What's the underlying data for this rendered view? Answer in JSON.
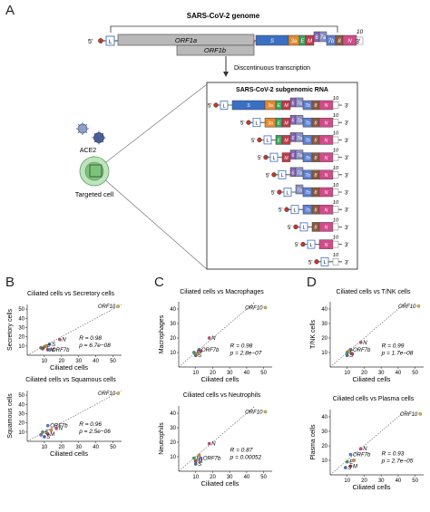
{
  "panels": {
    "A": "A",
    "B": "B",
    "C": "C",
    "D": "D"
  },
  "genome": {
    "title": "SARS-CoV-2 genome",
    "five_prime": "5'",
    "three_prime": "3'",
    "leader": "L",
    "orf1a": "ORF1a",
    "orf1b": "ORF1b",
    "genes": [
      "S",
      "3a",
      "E",
      "M",
      "6",
      "7a",
      "7b",
      "8",
      "N",
      "10"
    ],
    "transcription_label": "Discontinuous transcription"
  },
  "subgenomic": {
    "title": "SARS-CoV-2 subgenomic RNA",
    "ten": "10",
    "rows": [
      [
        "S",
        "3a",
        "E",
        "M",
        "6",
        "7a",
        "7b",
        "8",
        "N"
      ],
      [
        "3a",
        "E",
        "M",
        "6",
        "7a",
        "7b",
        "8",
        "N"
      ],
      [
        "E",
        "M",
        "6",
        "7a",
        "7b",
        "8",
        "N"
      ],
      [
        "M",
        "6",
        "7a",
        "7b",
        "8",
        "N"
      ],
      [
        "6",
        "7a",
        "7b",
        "8",
        "N"
      ],
      [
        "7a",
        "7b",
        "8",
        "N"
      ],
      [
        "7b",
        "8",
        "N"
      ],
      [
        "8",
        "N"
      ],
      [
        "N"
      ],
      []
    ]
  },
  "cell": {
    "ace2": "ACE2",
    "targeted": "Targeted cell"
  },
  "colors": {
    "leader": "#ffffff",
    "orf": "#b9b9b9",
    "S": "#3a6fc4",
    "3a": "#e08a2c",
    "E": "#3aa35a",
    "M": "#c23a4a",
    "6": "#8a63b5",
    "7a": "#8a8fc8",
    "7b": "#5d7fcf",
    "8": "#8b5a3c",
    "N": "#d24b8a",
    "10": "#9aa0a6",
    "diag": "#555555",
    "axis": "#333333",
    "cap": "#c0392b",
    "virus": "#7a8fb3",
    "cellfill": "#7ac47a"
  },
  "chart_data": [
    {
      "type": "scatter",
      "title": "Ciliated cells vs Secretory cells",
      "xlabel": "Ciliated cells",
      "ylabel": "Secretory cells",
      "xlim": [
        0,
        55
      ],
      "ylim": [
        0,
        55
      ],
      "xticks": [
        10,
        20,
        30,
        40,
        50
      ],
      "yticks": [
        10,
        20,
        30,
        40,
        50
      ],
      "r_text": "R = 0.98",
      "p_text": "p = 6.7e−08",
      "points": [
        {
          "label": "ORF10",
          "x": 53,
          "y": 53,
          "color": "#e0b04a"
        },
        {
          "label": "N",
          "x": 19,
          "y": 17,
          "color": "#d24b8a"
        },
        {
          "label": "S",
          "x": 13,
          "y": 12,
          "color": "#3a6fc4"
        },
        {
          "label": "E",
          "x": 10,
          "y": 9,
          "color": "#3aa35a"
        },
        {
          "label": "M",
          "x": 12,
          "y": 6,
          "color": "#c23a4a"
        },
        {
          "label": "ORF7b",
          "x": 13,
          "y": 6,
          "color": "#5d7fcf"
        },
        {
          "label": "",
          "x": 8,
          "y": 8,
          "color": "#8a63b5"
        },
        {
          "label": "",
          "x": 11,
          "y": 10,
          "color": "#e08a2c"
        },
        {
          "label": "",
          "x": 9,
          "y": 7,
          "color": "#8b5a3c"
        }
      ],
      "labels_shown": [
        "ORF10",
        "N",
        "S",
        "E",
        "M",
        "ORF7b"
      ]
    },
    {
      "type": "scatter",
      "title": "Ciliated cells vs Squamous cells",
      "xlabel": "Ciliated cells",
      "ylabel": "Squamous cells",
      "xlim": [
        0,
        55
      ],
      "ylim": [
        0,
        55
      ],
      "xticks": [
        10,
        20,
        30,
        40,
        50
      ],
      "yticks": [
        10,
        20,
        30,
        40,
        50
      ],
      "r_text": "R = 0.96",
      "p_text": "p = 2.5e−06",
      "points": [
        {
          "label": "ORF10",
          "x": 53,
          "y": 52,
          "color": "#e0b04a"
        },
        {
          "label": "N",
          "x": 17,
          "y": 14,
          "color": "#d24b8a"
        },
        {
          "label": "ORF7b",
          "x": 12,
          "y": 17,
          "color": "#5d7fcf"
        },
        {
          "label": "E",
          "x": 9,
          "y": 10,
          "color": "#3aa35a"
        },
        {
          "label": "M",
          "x": 12,
          "y": 8,
          "color": "#c23a4a"
        },
        {
          "label": "S",
          "x": 10,
          "y": 5,
          "color": "#3a6fc4"
        },
        {
          "label": "",
          "x": 14,
          "y": 12,
          "color": "#e08a2c"
        },
        {
          "label": "",
          "x": 8,
          "y": 7,
          "color": "#8a63b5"
        }
      ]
    },
    {
      "type": "scatter",
      "title": "Ciliated cells vs Macrophages",
      "xlabel": "Ciliated cells",
      "ylabel": "Macrophages",
      "xlim": [
        0,
        55
      ],
      "ylim": [
        0,
        45
      ],
      "xticks": [
        10,
        20,
        30,
        40,
        50
      ],
      "yticks": [
        10,
        20,
        30,
        40
      ],
      "r_text": "R = 0.98",
      "p_text": "p = 2.8e−07",
      "points": [
        {
          "label": "ORF10",
          "x": 51,
          "y": 41,
          "color": "#e0b04a"
        },
        {
          "label": "N",
          "x": 18,
          "y": 20,
          "color": "#d24b8a"
        },
        {
          "label": "ORF7b",
          "x": 12,
          "y": 12,
          "color": "#5d7fcf"
        },
        {
          "label": "S",
          "x": 10,
          "y": 8,
          "color": "#3a6fc4"
        },
        {
          "label": "E",
          "x": 9,
          "y": 10,
          "color": "#3aa35a"
        },
        {
          "label": "",
          "x": 13,
          "y": 11,
          "color": "#c23a4a"
        },
        {
          "label": "",
          "x": 11,
          "y": 9,
          "color": "#e08a2c"
        }
      ]
    },
    {
      "type": "scatter",
      "title": "Ciliated cells vs Neutrophils",
      "xlabel": "Ciliated cells",
      "ylabel": "Neutrophils",
      "xlim": [
        0,
        55
      ],
      "ylim": [
        0,
        45
      ],
      "xticks": [
        10,
        20,
        30,
        40,
        50
      ],
      "yticks": [
        10,
        20,
        30,
        40
      ],
      "r_text": "R = 0.87",
      "p_text": "p = 0.00052",
      "points": [
        {
          "label": "ORF10",
          "x": 51,
          "y": 41,
          "color": "#e0b04a"
        },
        {
          "label": "N",
          "x": 18,
          "y": 19,
          "color": "#d24b8a"
        },
        {
          "label": "ORF7b",
          "x": 13,
          "y": 9,
          "color": "#5d7fcf"
        },
        {
          "label": "E",
          "x": 9,
          "y": 9,
          "color": "#3aa35a"
        },
        {
          "label": "M",
          "x": 10,
          "y": 7,
          "color": "#c23a4a"
        },
        {
          "label": "S",
          "x": 10,
          "y": 5,
          "color": "#3a6fc4"
        },
        {
          "label": "",
          "x": 12,
          "y": 11,
          "color": "#e08a2c"
        }
      ]
    },
    {
      "type": "scatter",
      "title": "Ciliated cells vs T/NK cells",
      "xlabel": "Ciliated cells",
      "ylabel": "T/NK cells",
      "xlim": [
        0,
        55
      ],
      "ylim": [
        0,
        45
      ],
      "xticks": [
        10,
        20,
        30,
        40,
        50
      ],
      "yticks": [
        10,
        20,
        30,
        40
      ],
      "r_text": "R = 0.99",
      "p_text": "p = 1.7e−08",
      "points": [
        {
          "label": "ORF10",
          "x": 52,
          "y": 42,
          "color": "#e0b04a"
        },
        {
          "label": "N",
          "x": 18,
          "y": 17,
          "color": "#d24b8a"
        },
        {
          "label": "ORF7b",
          "x": 12,
          "y": 12,
          "color": "#5d7fcf"
        },
        {
          "label": "S",
          "x": 10,
          "y": 8,
          "color": "#3a6fc4"
        },
        {
          "label": "E",
          "x": 10,
          "y": 10,
          "color": "#3aa35a"
        },
        {
          "label": "",
          "x": 13,
          "y": 9,
          "color": "#c23a4a"
        },
        {
          "label": "",
          "x": 11,
          "y": 11,
          "color": "#e08a2c"
        }
      ]
    },
    {
      "type": "scatter",
      "title": "Ciliated cells vs Plasma cells",
      "xlabel": "Ciliated cells",
      "ylabel": "Plasma cells",
      "xlim": [
        0,
        55
      ],
      "ylim": [
        0,
        45
      ],
      "xticks": [
        10,
        20,
        30,
        40,
        50
      ],
      "yticks": [
        10,
        20,
        30,
        40
      ],
      "r_text": "R = 0.93",
      "p_text": "p = 2.7e−05",
      "points": [
        {
          "label": "ORF10",
          "x": 53,
          "y": 42,
          "color": "#e0b04a"
        },
        {
          "label": "N",
          "x": 18,
          "y": 18,
          "color": "#d24b8a"
        },
        {
          "label": "ORF7b",
          "x": 12,
          "y": 14,
          "color": "#5d7fcf"
        },
        {
          "label": "E",
          "x": 10,
          "y": 9,
          "color": "#3aa35a"
        },
        {
          "label": "M",
          "x": 12,
          "y": 6,
          "color": "#c23a4a"
        },
        {
          "label": "S",
          "x": 9,
          "y": 5,
          "color": "#3a6fc4"
        },
        {
          "label": "",
          "x": 14,
          "y": 10,
          "color": "#e08a2c"
        }
      ]
    }
  ]
}
